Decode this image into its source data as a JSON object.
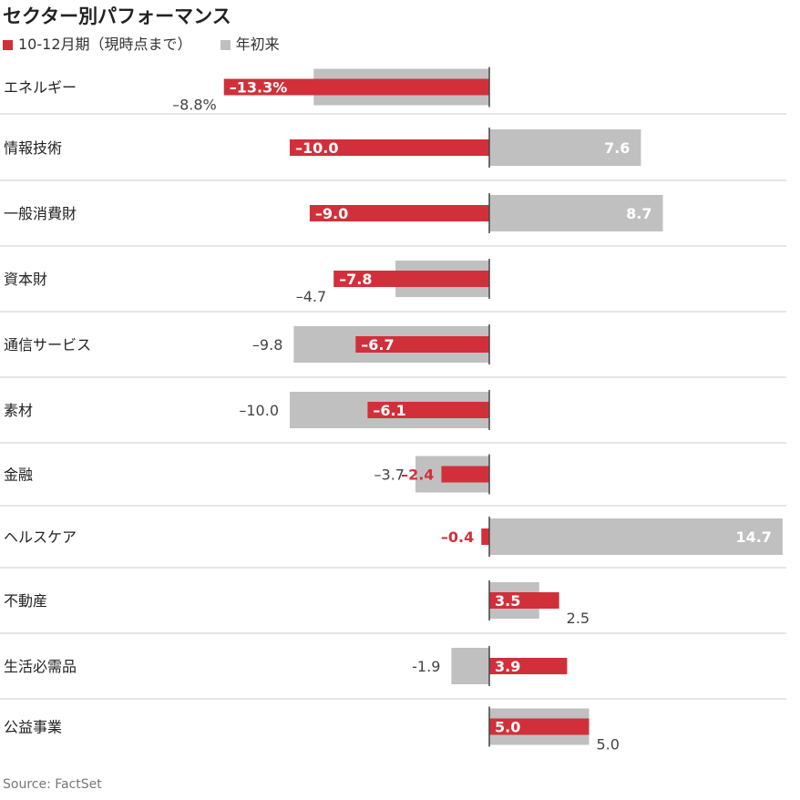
{
  "title": "セクター別パフォーマンス",
  "source": "Source: FactSet",
  "colors": {
    "q4": "#d1303a",
    "ytd": "#c0c0c0",
    "divider": "#cccccc",
    "axis": "#444444"
  },
  "chart_data": {
    "type": "bar",
    "orientation": "horizontal",
    "title": "セクター別パフォーマンス",
    "unit": "%",
    "xlim": [
      -14,
      15
    ],
    "categories": [
      "エネルギー",
      "情報技術",
      "一般消費財",
      "資本財",
      "通信サービス",
      "素材",
      "金融",
      "ヘルスケア",
      "不動産",
      "生活必需品",
      "公益事業"
    ],
    "series": [
      {
        "name": "10-12月期（現時点まで）",
        "color": "#d1303a",
        "values": [
          -13.3,
          -10.0,
          -9.0,
          -7.8,
          -6.7,
          -6.1,
          -2.4,
          -0.4,
          3.5,
          3.9,
          5.0
        ],
        "labels": [
          "–13.3%",
          "–10.0",
          "–9.0",
          "–7.8",
          "–6.7",
          "–6.1",
          "–2.4",
          "–0.4",
          "3.5",
          "3.9",
          "5.0"
        ]
      },
      {
        "name": "年初来",
        "color": "#c0c0c0",
        "values": [
          -8.8,
          7.6,
          8.7,
          -4.7,
          -9.8,
          -10.0,
          -3.7,
          14.7,
          2.5,
          -1.9,
          5.0
        ],
        "labels": [
          "–8.8%",
          "7.6",
          "8.7",
          "–4.7",
          "–9.8",
          "–10.0",
          "–3.7",
          "14.7",
          "2.5",
          "-1.9",
          "5.0"
        ]
      }
    ],
    "legend_position": "top-left",
    "grid": false
  }
}
